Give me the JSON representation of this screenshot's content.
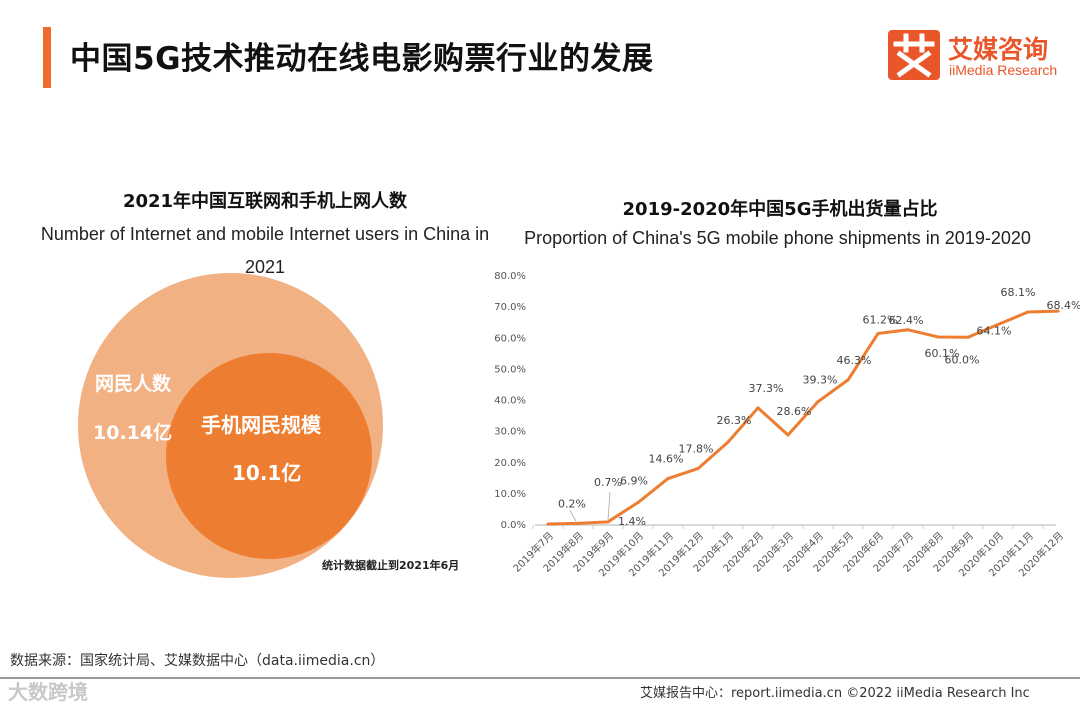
{
  "header": {
    "title": "中国5G技术推动在线电影购票行业的发展",
    "logo_cn": "艾媒咨询",
    "logo_en": "iiMedia Research"
  },
  "venn": {
    "title": "2021年中国互联网和手机上网人数",
    "subtitle": "Number of Internet and mobile Internet users in China in 2021",
    "outer_label": "网民人数",
    "outer_value": "10.14亿",
    "inner_label": "手机网民规模",
    "inner_value": "10.1亿",
    "note": "统计数据截止到2021年6月"
  },
  "chart_data": {
    "type": "line",
    "title": "2019-2020年中国5G手机出货量占比",
    "subtitle": "Proportion of China's 5G mobile phone shipments in 2019-2020",
    "categories": [
      "2019年7月",
      "2019年8月",
      "2019年9月",
      "2019年10月",
      "2019年11月",
      "2019年12月",
      "2020年1月",
      "2020年2月",
      "2020年3月",
      "2020年4月",
      "2020年5月",
      "2020年6月",
      "2020年7月",
      "2020年8月",
      "2020年9月",
      "2020年10月",
      "2020年11月",
      "2020年12月"
    ],
    "values": [
      0.0,
      0.2,
      0.7,
      6.9,
      14.6,
      17.8,
      26.3,
      37.3,
      28.6,
      39.3,
      46.3,
      61.2,
      62.4,
      60.1,
      60.0,
      64.1,
      68.1,
      68.4
    ],
    "labels": [
      "",
      "0.2%",
      "0.7%",
      "6.9%",
      "14.6%",
      "17.8%",
      "26.3%",
      "37.3%",
      "28.6%",
      "39.3%",
      "46.3%",
      "61.2%",
      "62.4%",
      "60.1%",
      "60.0%",
      "64.1%",
      "68.1%",
      "68.4%"
    ],
    "extra_label": "1.4%",
    "yticks": [
      "0.0%",
      "10.0%",
      "20.0%",
      "30.0%",
      "40.0%",
      "50.0%",
      "60.0%",
      "70.0%",
      "80.0%"
    ],
    "ylim": [
      0,
      80
    ],
    "grid": false,
    "line_color": "#ed7d31"
  },
  "footer": {
    "source": "数据来源：国家统计局、艾媒数据中心（data.iimedia.cn）",
    "watermark": "大数跨境",
    "right": "艾媒报告中心：report.iimedia.cn    ©2022  iiMedia Research  Inc"
  },
  "colors": {
    "accent": "#ef6a2e",
    "outer_circle": "#f2b183",
    "inner_circle": "#ed7d31"
  }
}
